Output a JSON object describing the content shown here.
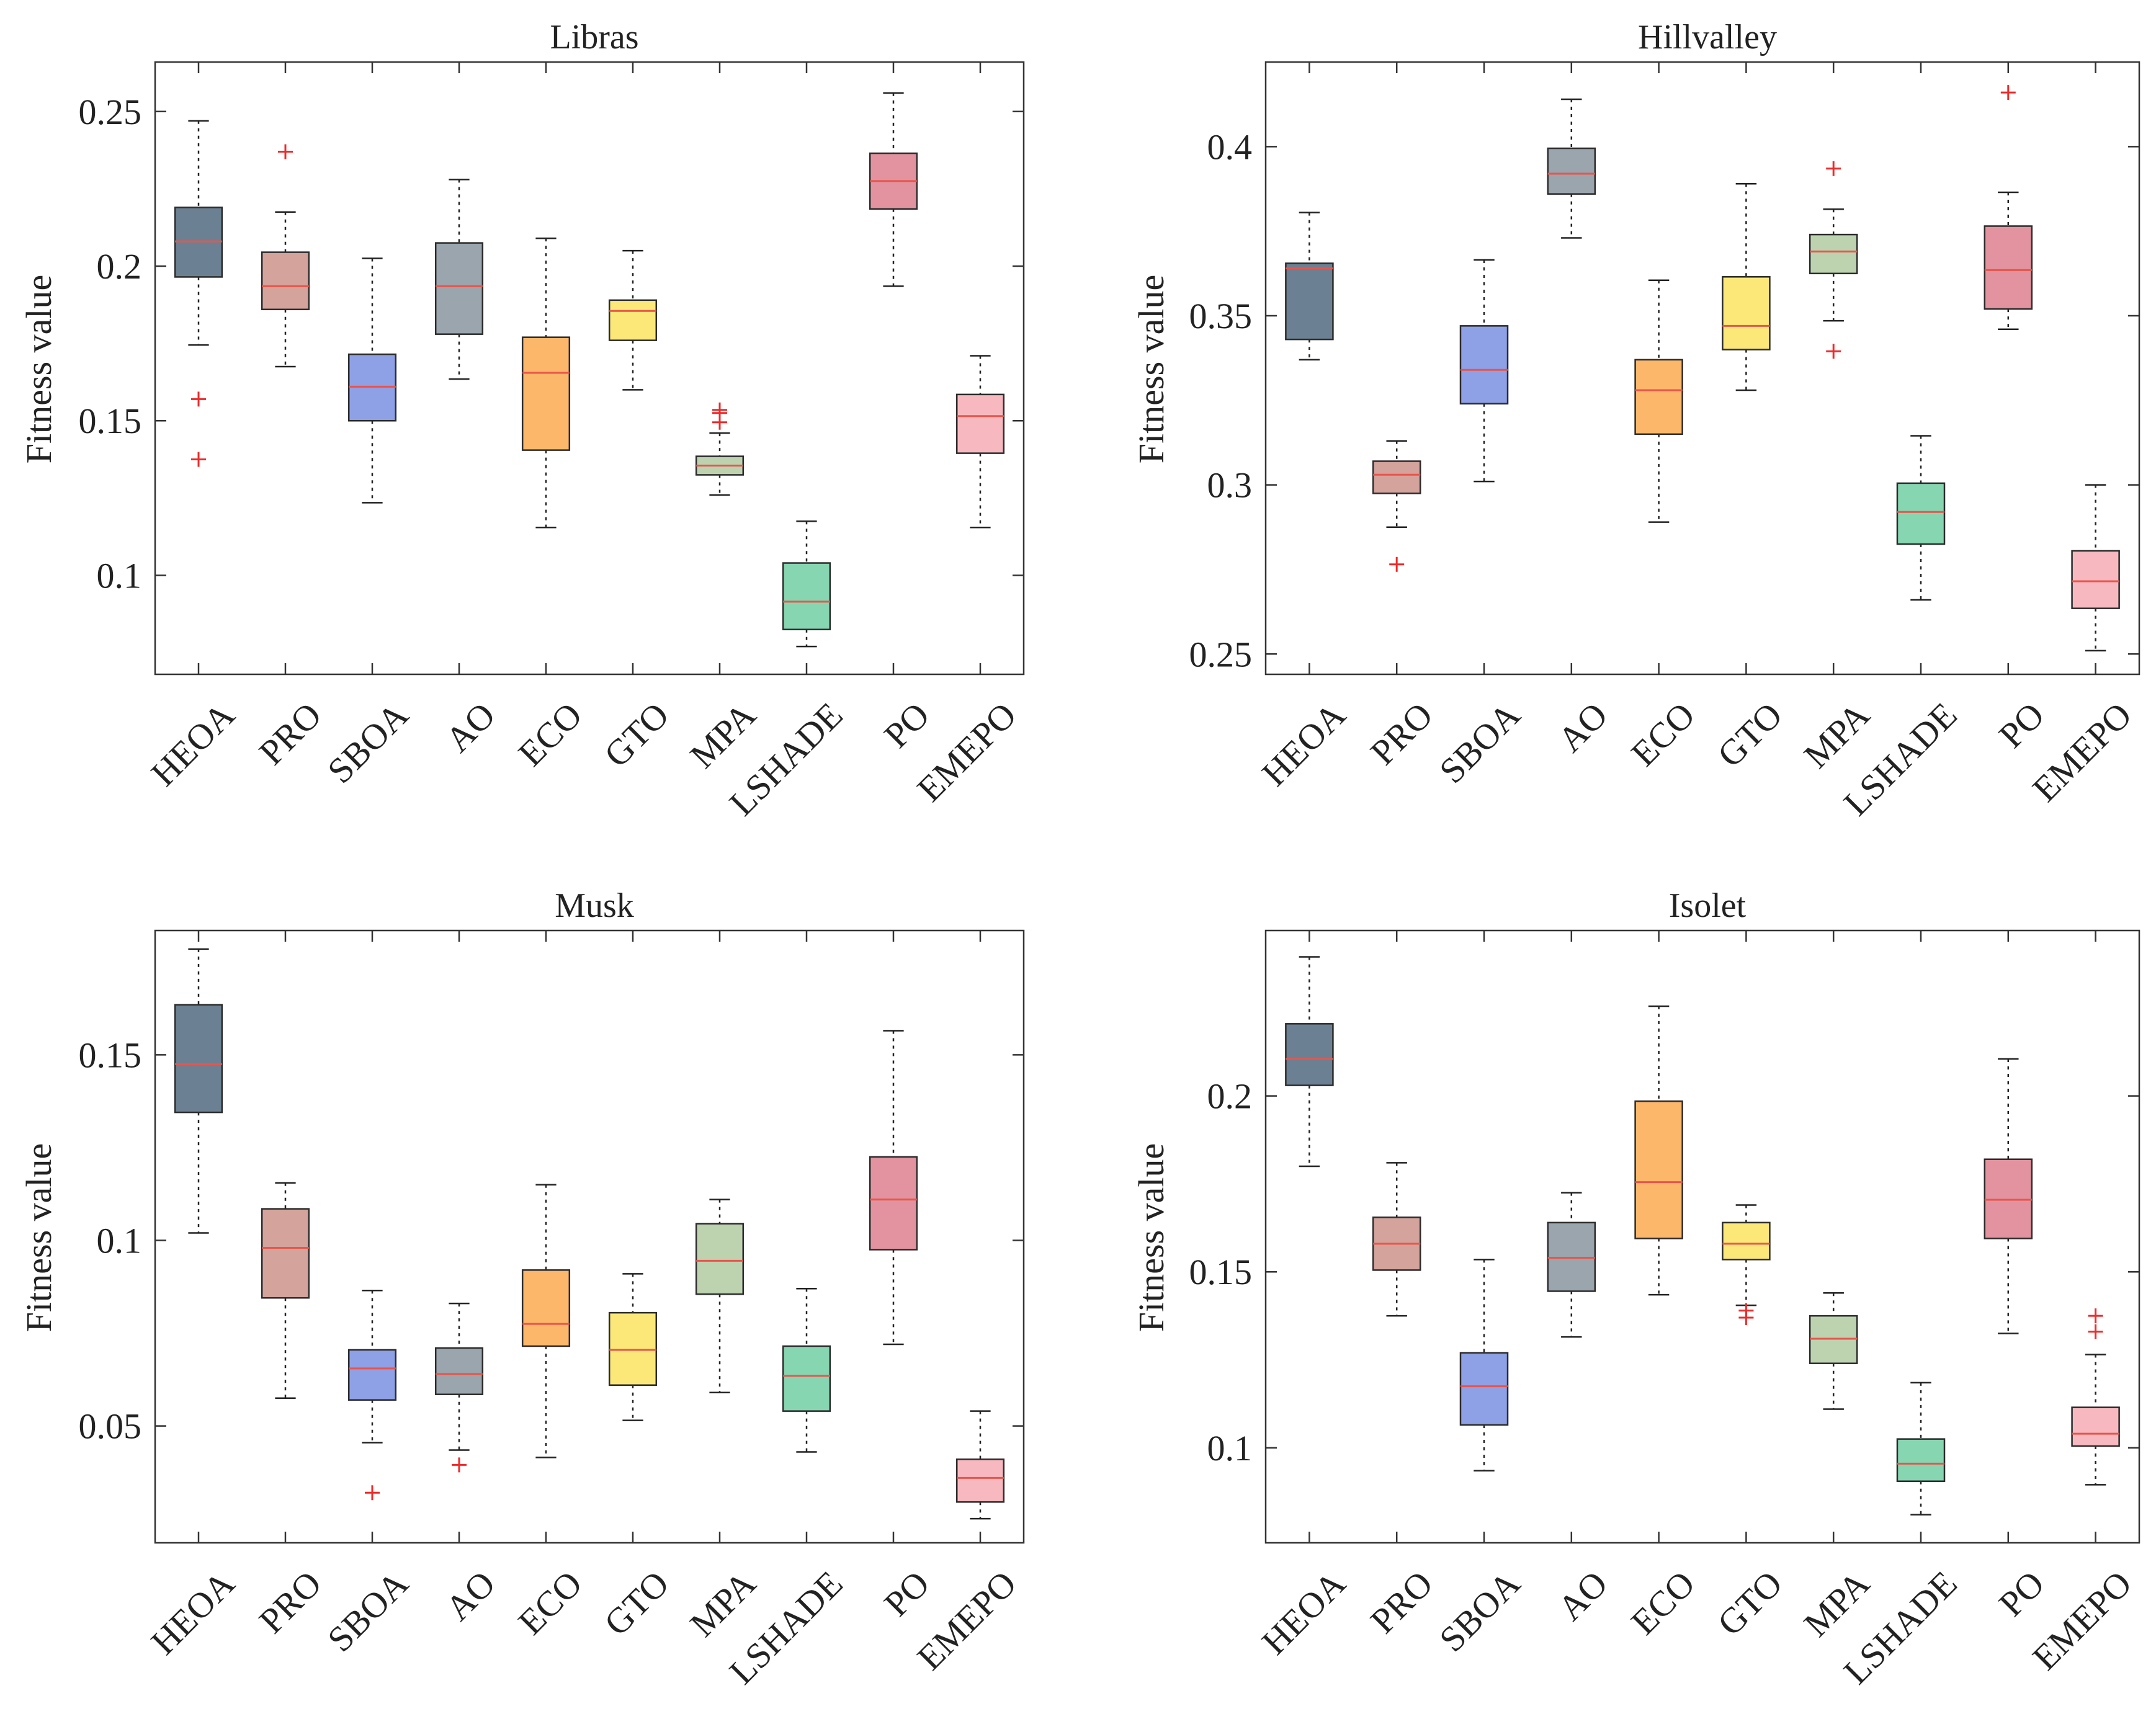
{
  "colors": {
    "HEOA": "#6b8193",
    "PRO": "#d4a39c",
    "SBOA": "#8ea0e6",
    "AO": "#9aa5ad",
    "ECO": "#fdb76a",
    "GTO": "#fbe878",
    "MPA": "#bdd3b0",
    "LSHADE": "#86d6b1",
    "PO": "#e3939f",
    "EMEPO": "#f7b9bf",
    "median": "#e8554c",
    "outlier": "#ee2a2a",
    "axis": "#333333"
  },
  "chart_data": [
    {
      "type": "boxplot",
      "title": "Libras",
      "ylabel": "Fitness value",
      "categories": [
        "HEOA",
        "PRO",
        "SBOA",
        "AO",
        "ECO",
        "GTO",
        "MPA",
        "LSHADE",
        "PO",
        "EMEPO"
      ],
      "ylim": [
        0.068,
        0.266
      ],
      "yticks": [
        0.1,
        0.15,
        0.2,
        0.25
      ],
      "ytick_labels": [
        "0.1",
        "0.15",
        "0.2",
        "0.25"
      ],
      "boxes": [
        {
          "min": 0.1745,
          "q1": 0.1965,
          "median": 0.208,
          "q3": 0.219,
          "max": 0.247,
          "outliers": [
            0.157,
            0.1375
          ]
        },
        {
          "min": 0.1675,
          "q1": 0.186,
          "median": 0.1935,
          "q3": 0.2045,
          "max": 0.2175,
          "outliers": [
            0.237
          ]
        },
        {
          "min": 0.1235,
          "q1": 0.15,
          "median": 0.161,
          "q3": 0.1715,
          "max": 0.2025,
          "outliers": []
        },
        {
          "min": 0.1635,
          "q1": 0.178,
          "median": 0.1935,
          "q3": 0.2075,
          "max": 0.228,
          "outliers": []
        },
        {
          "min": 0.1155,
          "q1": 0.1405,
          "median": 0.1655,
          "q3": 0.177,
          "max": 0.209,
          "outliers": []
        },
        {
          "min": 0.16,
          "q1": 0.176,
          "median": 0.1855,
          "q3": 0.189,
          "max": 0.205,
          "outliers": []
        },
        {
          "min": 0.126,
          "q1": 0.1325,
          "median": 0.1355,
          "q3": 0.1385,
          "max": 0.146,
          "outliers": [
            0.1535,
            0.1495,
            0.1525
          ]
        },
        {
          "min": 0.077,
          "q1": 0.0825,
          "median": 0.0915,
          "q3": 0.104,
          "max": 0.1175,
          "outliers": []
        },
        {
          "min": 0.1935,
          "q1": 0.2185,
          "median": 0.2275,
          "q3": 0.2365,
          "max": 0.256,
          "outliers": []
        },
        {
          "min": 0.1155,
          "q1": 0.1395,
          "median": 0.1515,
          "q3": 0.1585,
          "max": 0.171,
          "outliers": []
        }
      ]
    },
    {
      "type": "boxplot",
      "title": "Hillvalley",
      "ylabel": "Fitness value",
      "categories": [
        "HEOA",
        "PRO",
        "SBOA",
        "AO",
        "ECO",
        "GTO",
        "MPA",
        "LSHADE",
        "PO",
        "EMEPO"
      ],
      "ylim": [
        0.244,
        0.425
      ],
      "yticks": [
        0.25,
        0.3,
        0.35,
        0.4
      ],
      "ytick_labels": [
        "0.25",
        "0.3",
        "0.35",
        "0.4"
      ],
      "boxes": [
        {
          "min": 0.337,
          "q1": 0.343,
          "median": 0.364,
          "q3": 0.3655,
          "max": 0.3805,
          "outliers": []
        },
        {
          "min": 0.2875,
          "q1": 0.2975,
          "median": 0.303,
          "q3": 0.307,
          "max": 0.313,
          "outliers": [
            0.2765
          ]
        },
        {
          "min": 0.301,
          "q1": 0.324,
          "median": 0.334,
          "q3": 0.347,
          "max": 0.3665,
          "outliers": []
        },
        {
          "min": 0.373,
          "q1": 0.386,
          "median": 0.392,
          "q3": 0.3995,
          "max": 0.414,
          "outliers": []
        },
        {
          "min": 0.289,
          "q1": 0.315,
          "median": 0.328,
          "q3": 0.337,
          "max": 0.3605,
          "outliers": []
        },
        {
          "min": 0.328,
          "q1": 0.34,
          "median": 0.347,
          "q3": 0.3615,
          "max": 0.389,
          "outliers": []
        },
        {
          "min": 0.3485,
          "q1": 0.3625,
          "median": 0.369,
          "q3": 0.374,
          "max": 0.3815,
          "outliers": [
            0.3935,
            0.3395
          ]
        },
        {
          "min": 0.266,
          "q1": 0.2825,
          "median": 0.292,
          "q3": 0.3005,
          "max": 0.3145,
          "outliers": []
        },
        {
          "min": 0.346,
          "q1": 0.352,
          "median": 0.3635,
          "q3": 0.3765,
          "max": 0.3865,
          "outliers": [
            0.416
          ]
        },
        {
          "min": 0.251,
          "q1": 0.2635,
          "median": 0.2715,
          "q3": 0.2805,
          "max": 0.3,
          "outliers": []
        }
      ]
    },
    {
      "type": "boxplot",
      "title": "Musk",
      "ylabel": "Fitness value",
      "categories": [
        "HEOA",
        "PRO",
        "SBOA",
        "AO",
        "ECO",
        "GTO",
        "MPA",
        "LSHADE",
        "PO",
        "EMEPO"
      ],
      "ylim": [
        0.0185,
        0.1835
      ],
      "yticks": [
        0.05,
        0.1,
        0.15
      ],
      "ytick_labels": [
        "0.05",
        "0.1",
        "0.15"
      ],
      "boxes": [
        {
          "min": 0.102,
          "q1": 0.1345,
          "median": 0.1475,
          "q3": 0.1635,
          "max": 0.1785,
          "outliers": []
        },
        {
          "min": 0.0575,
          "q1": 0.0845,
          "median": 0.098,
          "q3": 0.1085,
          "max": 0.1155,
          "outliers": []
        },
        {
          "min": 0.0455,
          "q1": 0.057,
          "median": 0.0655,
          "q3": 0.0705,
          "max": 0.0865,
          "outliers": [
            0.032
          ]
        },
        {
          "min": 0.0435,
          "q1": 0.0585,
          "median": 0.064,
          "q3": 0.071,
          "max": 0.083,
          "outliers": [
            0.0395
          ]
        },
        {
          "min": 0.0415,
          "q1": 0.0715,
          "median": 0.0775,
          "q3": 0.092,
          "max": 0.115,
          "outliers": []
        },
        {
          "min": 0.0515,
          "q1": 0.061,
          "median": 0.0705,
          "q3": 0.0805,
          "max": 0.091,
          "outliers": []
        },
        {
          "min": 0.059,
          "q1": 0.0855,
          "median": 0.0945,
          "q3": 0.1045,
          "max": 0.111,
          "outliers": []
        },
        {
          "min": 0.043,
          "q1": 0.054,
          "median": 0.0635,
          "q3": 0.0715,
          "max": 0.087,
          "outliers": []
        },
        {
          "min": 0.072,
          "q1": 0.0975,
          "median": 0.111,
          "q3": 0.1225,
          "max": 0.1565,
          "outliers": []
        },
        {
          "min": 0.025,
          "q1": 0.0295,
          "median": 0.036,
          "q3": 0.041,
          "max": 0.054,
          "outliers": []
        }
      ]
    },
    {
      "type": "boxplot",
      "title": "Isolet",
      "ylabel": "Fitness value",
      "categories": [
        "HEOA",
        "PRO",
        "SBOA",
        "AO",
        "ECO",
        "GTO",
        "MPA",
        "LSHADE",
        "PO",
        "EMEPO"
      ],
      "ylim": [
        0.073,
        0.247
      ],
      "yticks": [
        0.1,
        0.15,
        0.2
      ],
      "ytick_labels": [
        "0.1",
        "0.15",
        "0.2"
      ],
      "boxes": [
        {
          "min": 0.18,
          "q1": 0.203,
          "median": 0.2105,
          "q3": 0.2205,
          "max": 0.2395,
          "outliers": []
        },
        {
          "min": 0.1375,
          "q1": 0.1505,
          "median": 0.158,
          "q3": 0.1655,
          "max": 0.181,
          "outliers": []
        },
        {
          "min": 0.0935,
          "q1": 0.1065,
          "median": 0.1175,
          "q3": 0.127,
          "max": 0.1535,
          "outliers": []
        },
        {
          "min": 0.1315,
          "q1": 0.1445,
          "median": 0.154,
          "q3": 0.164,
          "max": 0.1725,
          "outliers": []
        },
        {
          "min": 0.1435,
          "q1": 0.1595,
          "median": 0.1755,
          "q3": 0.1985,
          "max": 0.2255,
          "outliers": []
        },
        {
          "min": 0.1405,
          "q1": 0.1535,
          "median": 0.158,
          "q3": 0.164,
          "max": 0.169,
          "outliers": [
            0.137,
            0.139
          ]
        },
        {
          "min": 0.111,
          "q1": 0.124,
          "median": 0.131,
          "q3": 0.1375,
          "max": 0.144,
          "outliers": []
        },
        {
          "min": 0.081,
          "q1": 0.0905,
          "median": 0.0955,
          "q3": 0.1025,
          "max": 0.1185,
          "outliers": []
        },
        {
          "min": 0.1325,
          "q1": 0.1595,
          "median": 0.1705,
          "q3": 0.182,
          "max": 0.2105,
          "outliers": []
        },
        {
          "min": 0.0895,
          "q1": 0.1005,
          "median": 0.104,
          "q3": 0.1115,
          "max": 0.1265,
          "outliers": [
            0.133,
            0.1375
          ]
        }
      ]
    }
  ]
}
